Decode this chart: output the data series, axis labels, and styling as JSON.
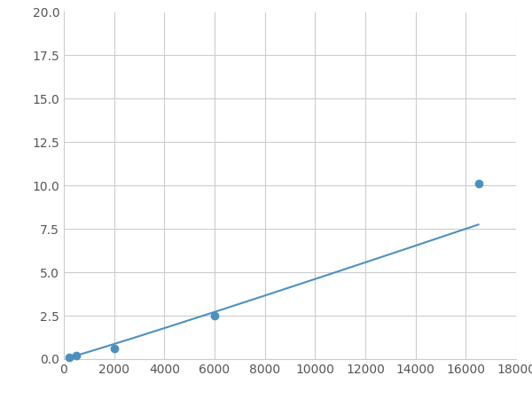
{
  "x_data": [
    200,
    500,
    2000,
    6000,
    16500
  ],
  "y_data": [
    0.1,
    0.2,
    0.6,
    2.5,
    10.1
  ],
  "line_color": "#4d90c0",
  "marker_color": "#4d90c0",
  "marker_size": 6,
  "line_width": 1.5,
  "xlim": [
    0,
    18000
  ],
  "ylim": [
    0,
    20.0
  ],
  "xticks": [
    0,
    2000,
    4000,
    6000,
    8000,
    10000,
    12000,
    14000,
    16000,
    18000
  ],
  "yticks": [
    0.0,
    2.5,
    5.0,
    7.5,
    10.0,
    12.5,
    15.0,
    17.5,
    20.0
  ],
  "grid_color": "#cccccc",
  "background_color": "#ffffff",
  "tick_fontsize": 10,
  "figure_width": 6.0,
  "figure_height": 4.5
}
